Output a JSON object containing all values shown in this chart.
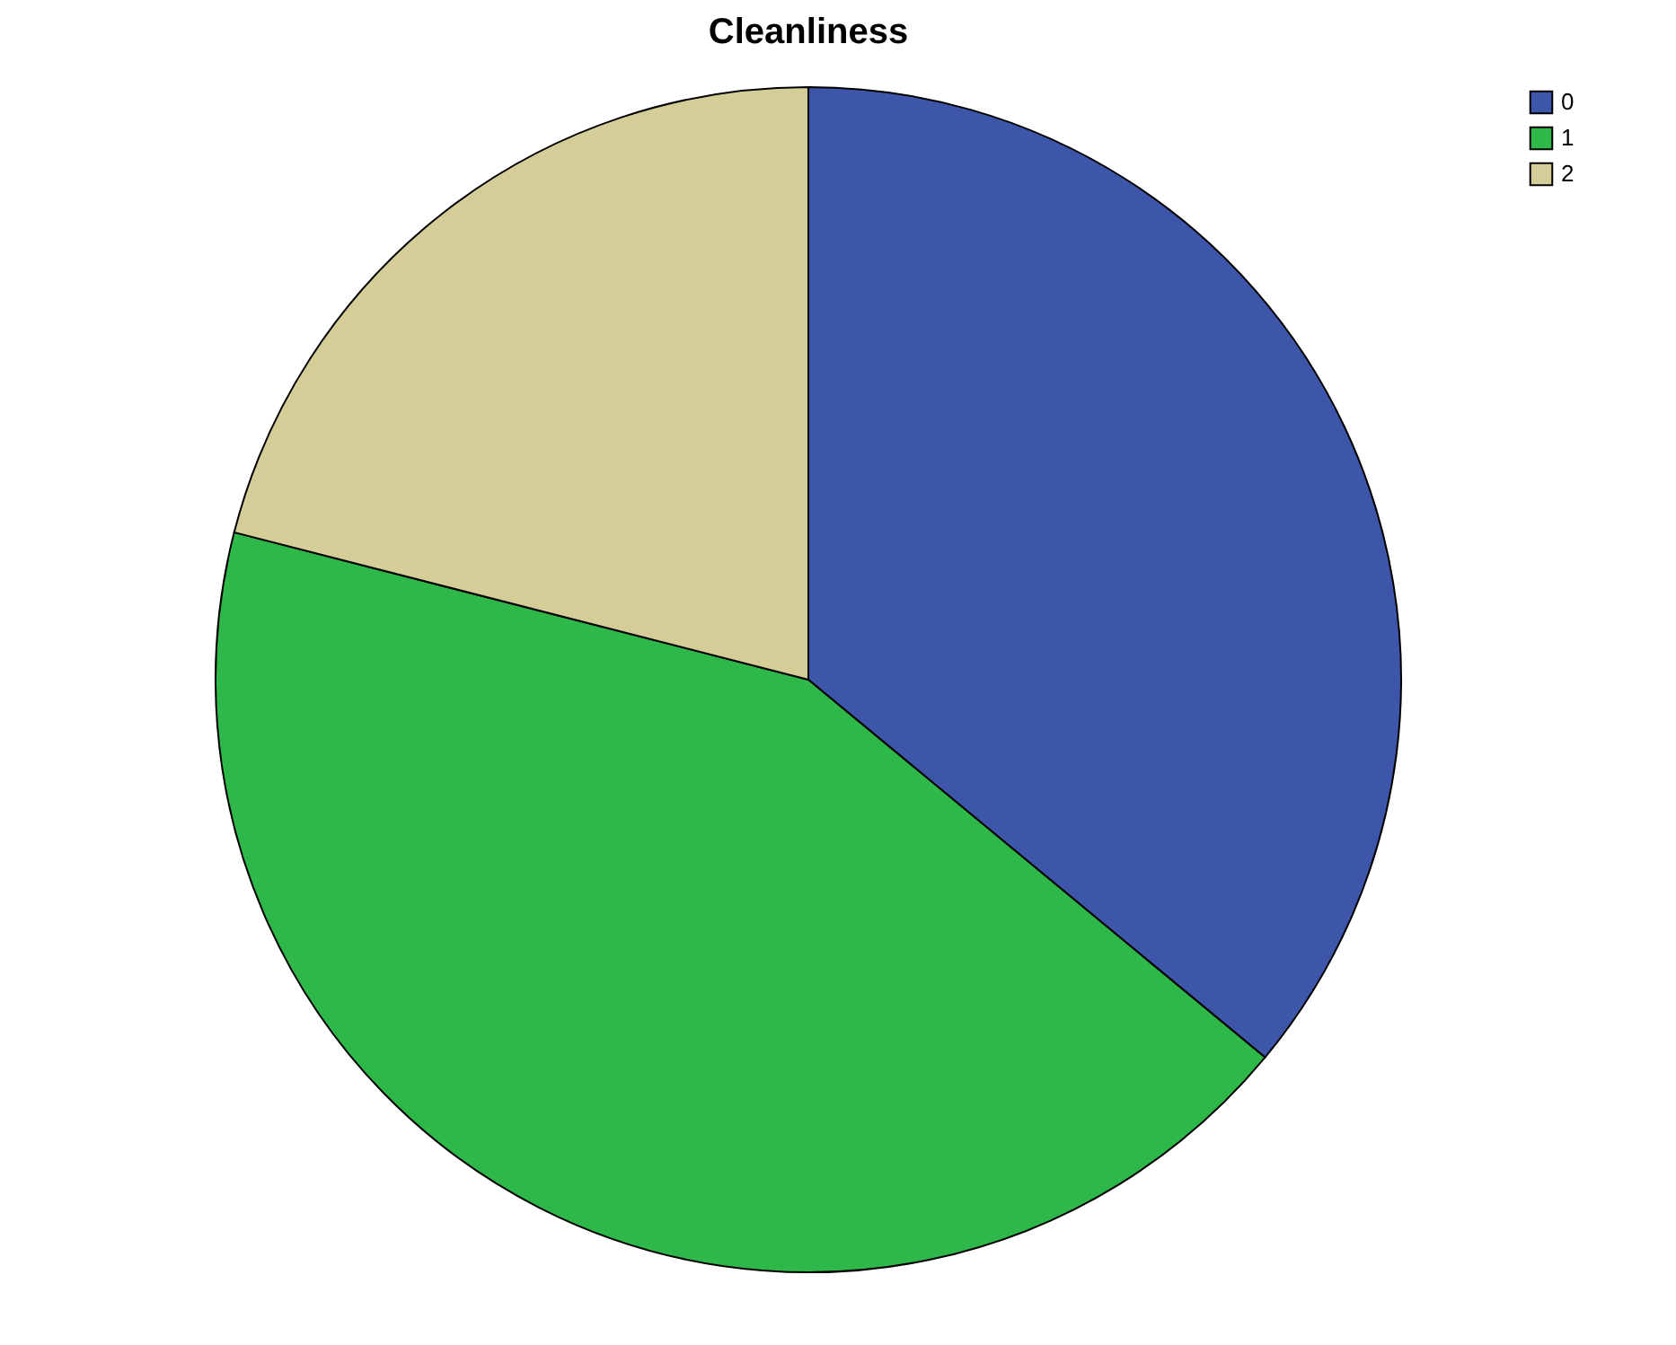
{
  "chart_data": {
    "type": "pie",
    "title": "Cleanliness",
    "categories": [
      "0",
      "1",
      "2"
    ],
    "values": [
      36,
      43,
      21
    ],
    "colors": [
      "#3d56aa",
      "#2eb84a",
      "#d4cd98"
    ],
    "legend": "top right"
  }
}
